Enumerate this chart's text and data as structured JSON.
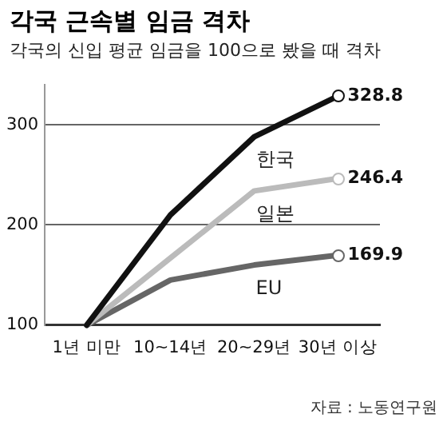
{
  "chart_data": {
    "type": "line",
    "title": "각국 근속별 임금 격차",
    "subtitle": "각국의 신입 평균 임금을 100으로 봤을 때 격차",
    "categories": [
      "1년 미만",
      "10~14년",
      "20~29년",
      "30년 이상"
    ],
    "series": [
      {
        "name": "한국",
        "color": "#111111",
        "values": [
          100,
          210,
          288,
          328.8
        ],
        "value_labels": [
          null,
          null,
          null,
          "328.8"
        ]
      },
      {
        "name": "일본",
        "color": "#bbbbbb",
        "values": [
          100,
          167,
          234,
          246.4
        ],
        "value_labels": [
          null,
          null,
          null,
          "246.4"
        ]
      },
      {
        "name": "EU",
        "color": "#666666",
        "values": [
          100,
          145,
          160,
          169.9
        ],
        "value_labels": [
          null,
          null,
          null,
          "169.9"
        ]
      }
    ],
    "ylim": [
      100,
      340
    ],
    "yticks": [
      100,
      200,
      300
    ],
    "grid": "y",
    "legend": false,
    "annotations": [
      "자료 : 노동연구원"
    ]
  }
}
